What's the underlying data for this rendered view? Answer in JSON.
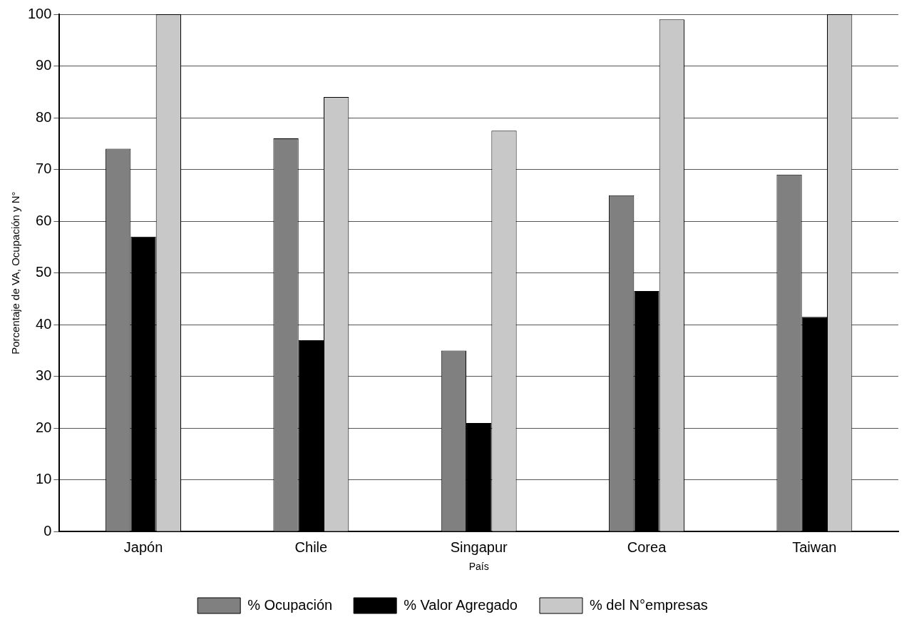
{
  "chart_data": {
    "type": "bar",
    "xlabel": "País",
    "ylabel": "Porcentaje de VA, Ocupación y N°",
    "categories": [
      "Japón",
      "Chile",
      "Singapur",
      "Corea",
      "Taiwan"
    ],
    "series": [
      {
        "name": "% Ocupación",
        "color": "#808080",
        "values": [
          74,
          76,
          35,
          65,
          69
        ]
      },
      {
        "name": "% Valor Agregado",
        "color": "#000000",
        "values": [
          57,
          37,
          21,
          46.5,
          41.5
        ]
      },
      {
        "name": "% del N°empresas",
        "color": "#c8c8c8",
        "values": [
          100,
          84,
          77.5,
          99,
          100
        ]
      }
    ],
    "ylim": [
      0,
      100
    ],
    "yticks": [
      0,
      10,
      20,
      30,
      40,
      50,
      60,
      70,
      80,
      90,
      100
    ],
    "grid": "y",
    "legend": "bottom"
  }
}
